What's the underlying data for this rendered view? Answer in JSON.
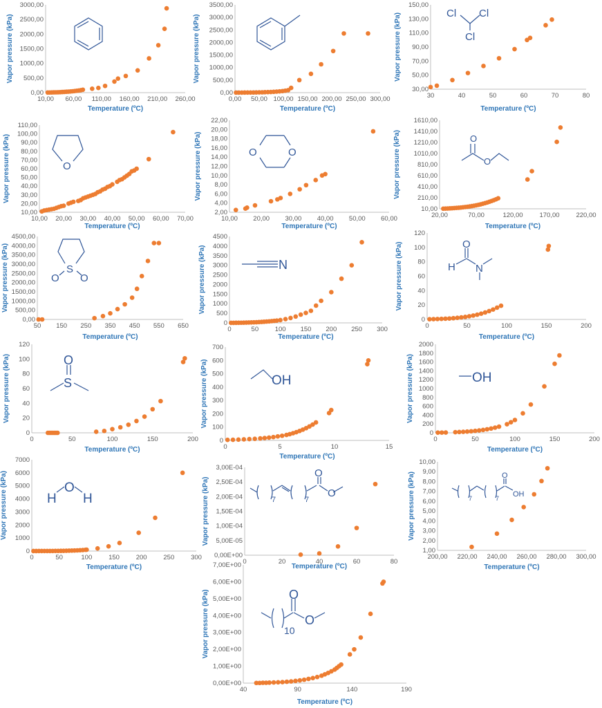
{
  "colors": {
    "point": "#ED7D31",
    "point_alt": "#5B9BD5",
    "label": "#2E75B6",
    "structure": "#2F5597"
  },
  "structures": {
    "c2": {
      "cl1": "Cl",
      "cl2": "Cl",
      "cl3": "Cl"
    },
    "c4": {
      "o1": "O",
      "o2": "O"
    },
    "c5": {
      "o": "O"
    },
    "c6": {
      "o1": "O",
      "o2": "O"
    },
    "c7": {
      "s": "S",
      "o1": "O",
      "o2": "O"
    },
    "c8": {
      "n": "N"
    },
    "c9": {
      "o": "O",
      "h": "H",
      "n": "N"
    },
    "c10": {
      "o": "O",
      "s": "S"
    },
    "c11": {
      "oh": "OH"
    },
    "c12": {
      "oh": "OH"
    },
    "c13": {
      "h1": "H",
      "o": "O",
      "h2": "H"
    },
    "c14": {
      "o1": "O",
      "o2": "O",
      "n1": "7",
      "n2": "7"
    },
    "c15": {
      "o": "O",
      "oh": "OH",
      "n1": "7",
      "n2": "7"
    },
    "c16": {
      "o1": "O",
      "o2": "O",
      "n": "10"
    }
  },
  "chart_data": [
    {
      "id": "c0",
      "type": "scatter",
      "title": "",
      "xlabel": "Temperature (ºC)",
      "ylabel": "Vapor pressure (kPa)",
      "xlim": [
        10,
        280
      ],
      "ylim": [
        0,
        3000
      ],
      "xticks": [
        "10,00",
        "60,00",
        "110,00",
        "160,00",
        "210,00",
        "260,00"
      ],
      "yticks": [
        "0,00",
        "500,00",
        "1000,00",
        "1500,00",
        "2000,00",
        "2500,00",
        "3000,00"
      ],
      "x": [
        14,
        18,
        22,
        26,
        30,
        34,
        38,
        42,
        46,
        50,
        54,
        58,
        62,
        66,
        70,
        74,
        78,
        82,
        100,
        112,
        125,
        143,
        150,
        165,
        188,
        210,
        228,
        240,
        244
      ],
      "y": [
        5,
        6,
        8,
        10,
        12,
        14,
        17,
        21,
        25,
        30,
        35,
        41,
        47,
        55,
        63,
        72,
        85,
        100,
        135,
        160,
        230,
        380,
        480,
        570,
        760,
        1170,
        1620,
        2180,
        2880
      ]
    },
    {
      "id": "c1",
      "type": "scatter",
      "title": "",
      "xlabel": "Temperature (ºC)",
      "ylabel": "Vapor pressure (kPa)",
      "xlim": [
        0,
        300
      ],
      "ylim": [
        0,
        3500
      ],
      "xticks": [
        "0,00",
        "50,00",
        "100,00",
        "150,00",
        "200,00",
        "250,00",
        "300,00"
      ],
      "yticks": [
        "0,00",
        "500,00",
        "1000,00",
        "1500,00",
        "2000,00",
        "2500,00",
        "3000,00",
        "3500,00"
      ],
      "x": [
        2,
        8,
        14,
        20,
        26,
        32,
        38,
        44,
        50,
        56,
        62,
        68,
        74,
        80,
        86,
        92,
        98,
        104,
        110,
        116,
        133,
        157,
        178,
        203,
        225,
        275
      ],
      "y": [
        2,
        2,
        3,
        4,
        5,
        6,
        7,
        9,
        11,
        14,
        18,
        22,
        27,
        33,
        41,
        50,
        62,
        78,
        100,
        190,
        500,
        750,
        1130,
        1660,
        2360,
        2360
      ],
      "x_blue": [
        5,
        20,
        40,
        60,
        80,
        100
      ],
      "y_blue": [
        2,
        4,
        7,
        14,
        30,
        65
      ]
    },
    {
      "id": "c2",
      "type": "scatter",
      "title": "",
      "xlabel": "Temperature (ºC)",
      "ylabel": "Vapor pressure (kPa)",
      "xlim": [
        30,
        80
      ],
      "ylim": [
        30,
        150
      ],
      "xticks": [
        "30",
        "40",
        "50",
        "60",
        "70",
        "80"
      ],
      "yticks": [
        "30,00",
        "50,00",
        "70,00",
        "90,00",
        "110,00",
        "130,00",
        "150,00"
      ],
      "x": [
        30,
        32,
        37,
        42,
        47,
        52,
        57,
        61,
        62,
        67,
        69
      ],
      "y": [
        33,
        35,
        43,
        53,
        63,
        74,
        87,
        100,
        103,
        121,
        129
      ]
    },
    {
      "id": "c3",
      "type": "scatter",
      "title": "",
      "xlabel": "Temperature (ºC)",
      "ylabel": "Vapor pressure (kPa)",
      "xlim": [
        10,
        70
      ],
      "ylim": [
        10,
        110
      ],
      "xticks": [
        "10,00",
        "20,00",
        "30,00",
        "40,00",
        "50,00",
        "60,00",
        "70,00"
      ],
      "yticks": [
        "10,00",
        "20,00",
        "30,00",
        "40,00",
        "50,00",
        "60,00",
        "70,00",
        "80,00",
        "90,00",
        "100,00",
        "110,00"
      ],
      "x": [
        11,
        12,
        13,
        14,
        15,
        16,
        17,
        18,
        19,
        20,
        22,
        23,
        24,
        26,
        27,
        28,
        29,
        30,
        31,
        32,
        33,
        34,
        35,
        36,
        37,
        38,
        39,
        40,
        42,
        43,
        44,
        45,
        46,
        47,
        48,
        49,
        50,
        55,
        65
      ],
      "y": [
        11,
        12,
        12.5,
        13,
        13.5,
        14,
        15,
        16,
        17,
        17.5,
        20,
        21,
        22,
        23,
        24,
        26,
        27,
        28,
        29,
        30,
        31,
        33,
        34,
        36,
        37,
        39,
        40,
        42,
        45,
        47,
        48,
        50,
        52,
        54,
        57,
        58,
        60,
        71,
        102
      ]
    },
    {
      "id": "c4",
      "type": "scatter",
      "title": "",
      "xlabel": "Temperature (ºC)",
      "ylabel": "Vapor pressure (kPa)",
      "xlim": [
        10,
        60
      ],
      "ylim": [
        2,
        22
      ],
      "xticks": [
        "10,00",
        "20,00",
        "30,00",
        "40,00",
        "50,00",
        "60,00"
      ],
      "yticks": [
        "2,00",
        "4,00",
        "6,00",
        "8,00",
        "10,00",
        "12,00",
        "14,00",
        "16,00",
        "18,00",
        "20,00",
        "22,00"
      ],
      "x": [
        12,
        15,
        15.5,
        18,
        23,
        25,
        26,
        29,
        32,
        34,
        37,
        39,
        40,
        55
      ],
      "y": [
        2.5,
        2.8,
        3,
        3.5,
        4.4,
        4.8,
        5.1,
        6,
        7,
        7.9,
        9,
        10,
        10.3,
        19.6
      ]
    },
    {
      "id": "c5",
      "type": "scatter",
      "title": "",
      "xlabel": "Temperature (ºC)",
      "ylabel": "Vapor pressure (kPa)",
      "xlim": [
        20,
        220
      ],
      "ylim": [
        10,
        1610
      ],
      "xticks": [
        "20,00",
        "70,00",
        "120,00",
        "170,00",
        "220,00"
      ],
      "yticks": [
        "10,00",
        "210,00",
        "410,00",
        "610,00",
        "810,00",
        "1010,00",
        "1210,00",
        "1410,00",
        "1610,00"
      ],
      "x": [
        25,
        28,
        31,
        34,
        37,
        40,
        43,
        46,
        49,
        52,
        55,
        58,
        61,
        64,
        67,
        70,
        73,
        76,
        79,
        82,
        85,
        88,
        91,
        94,
        97,
        100,
        140,
        146,
        180,
        185
      ],
      "y": [
        12,
        14,
        16,
        18,
        20,
        23,
        26,
        29,
        33,
        37,
        42,
        47,
        53,
        59,
        66,
        73,
        82,
        91,
        101,
        112,
        124,
        137,
        151,
        166,
        182,
        200,
        540,
        690,
        1220,
        1480
      ]
    },
    {
      "id": "c6",
      "type": "scatter",
      "title": "",
      "xlabel": "Temperature (ºC)",
      "ylabel": "Vapor pressure (kPa)",
      "xlim": [
        50,
        650
      ],
      "ylim": [
        0,
        4500
      ],
      "xticks": [
        "50",
        "150",
        "250",
        "350",
        "450",
        "550",
        "650"
      ],
      "yticks": [
        "0,00",
        "500,00",
        "1000,00",
        "1500,00",
        "2000,00",
        "2500,00",
        "3000,00",
        "3500,00",
        "4000,00",
        "4500,00"
      ],
      "x": [
        55,
        70,
        285,
        320,
        350,
        380,
        410,
        440,
        460,
        480,
        505,
        530,
        550
      ],
      "y": [
        0,
        0,
        70,
        180,
        330,
        560,
        820,
        1180,
        1660,
        2350,
        3170,
        4140,
        4140
      ]
    },
    {
      "id": "c7",
      "type": "scatter",
      "title": "",
      "xlabel": "Temperature (ºC)",
      "ylabel": "Vapor pressure (kPa)",
      "xlim": [
        0,
        300
      ],
      "ylim": [
        0,
        4500
      ],
      "xticks": [
        "0",
        "50",
        "100",
        "150",
        "200",
        "250",
        "300"
      ],
      "yticks": [
        "0",
        "500",
        "1000",
        "1500",
        "2000",
        "2500",
        "3000",
        "3500",
        "4000",
        "4500"
      ],
      "x": [
        3,
        8,
        13,
        18,
        23,
        28,
        33,
        38,
        43,
        48,
        53,
        58,
        63,
        68,
        73,
        78,
        83,
        88,
        93,
        100,
        110,
        120,
        130,
        140,
        150,
        160,
        170,
        180,
        200,
        220,
        240,
        260
      ],
      "y": [
        2,
        3,
        5,
        7,
        9,
        12,
        15,
        19,
        24,
        29,
        35,
        42,
        50,
        59,
        69,
        80,
        92,
        105,
        120,
        145,
        195,
        255,
        330,
        430,
        520,
        630,
        900,
        1150,
        1600,
        2300,
        3000,
        4200
      ]
    },
    {
      "id": "c8",
      "type": "scatter",
      "title": "",
      "xlabel": "Temperature (ºC)",
      "ylabel": "Vapor pressure (kPa)",
      "xlim": [
        0,
        200
      ],
      "ylim": [
        0,
        120
      ],
      "xticks": [
        "0",
        "50",
        "100",
        "150",
        "200"
      ],
      "yticks": [
        "0",
        "20",
        "40",
        "60",
        "80",
        "100",
        "120"
      ],
      "x": [
        3,
        8,
        13,
        18,
        23,
        28,
        33,
        38,
        43,
        48,
        53,
        58,
        63,
        68,
        73,
        78,
        83,
        88,
        93,
        152,
        153
      ],
      "y": [
        0.3,
        0.4,
        0.6,
        0.8,
        1,
        1.3,
        1.7,
        2.2,
        2.8,
        3.5,
        4.4,
        5.4,
        6.6,
        8,
        9.7,
        11.6,
        13.8,
        16.4,
        19,
        97,
        102
      ]
    },
    {
      "id": "c9",
      "type": "scatter",
      "title": "",
      "xlabel": "Temperature (ºC)",
      "ylabel": "Vapor pressure (kPa)",
      "xlim": [
        0,
        200
      ],
      "ylim": [
        0,
        120
      ],
      "xticks": [
        "0",
        "50",
        "100",
        "150",
        "200"
      ],
      "yticks": [
        "0",
        "20",
        "40",
        "60",
        "80",
        "100",
        "120"
      ],
      "x": [
        20,
        22,
        24,
        26,
        28,
        30,
        32,
        80,
        90,
        100,
        110,
        120,
        130,
        140,
        150,
        160,
        188,
        190
      ],
      "y": [
        0,
        0,
        0,
        0,
        0,
        0,
        0,
        1.5,
        2.5,
        5,
        7.5,
        11,
        16,
        22,
        32,
        43,
        96,
        101
      ]
    },
    {
      "id": "c10",
      "type": "scatter",
      "title": "",
      "xlabel": "Temperature (ºC)",
      "ylabel": "Vapor pressure (kPa)",
      "xlim": [
        0,
        15
      ],
      "ylim": [
        0,
        700
      ],
      "xticks": [
        "0",
        "5",
        "10",
        "15"
      ],
      "yticks": [
        "0",
        "100",
        "200",
        "300",
        "400",
        "500",
        "600",
        "700"
      ],
      "x": [
        0.2,
        0.7,
        1.2,
        1.7,
        2.2,
        2.7,
        3.2,
        3.6,
        4,
        4.4,
        4.8,
        5.2,
        5.6,
        5.9,
        6.2,
        6.5,
        6.8,
        7.1,
        7.4,
        7.7,
        8,
        8.3,
        9.5,
        9.7,
        13,
        13.1
      ],
      "y": [
        4,
        5,
        6,
        8,
        10,
        12,
        15,
        18,
        21,
        25,
        30,
        35,
        41,
        47,
        54,
        62,
        71,
        81,
        92,
        105,
        119,
        135,
        205,
        228,
        572,
        600
      ]
    },
    {
      "id": "c11",
      "type": "scatter",
      "title": "",
      "xlabel": "Temperature (ºC)",
      "ylabel": "Vapor pressure (kPa)",
      "xlim": [
        0,
        200
      ],
      "ylim": [
        0,
        2000
      ],
      "xticks": [
        "0",
        "50",
        "100",
        "150",
        "200"
      ],
      "yticks": [
        "0",
        "200",
        "400",
        "600",
        "800",
        "1000",
        "1200",
        "1400",
        "1600",
        "1800",
        "2000"
      ],
      "x": [
        3,
        8,
        13,
        25,
        30,
        35,
        40,
        45,
        50,
        55,
        60,
        65,
        70,
        75,
        80,
        90,
        95,
        100,
        110,
        120,
        137,
        150,
        156
      ],
      "y": [
        5,
        6,
        7,
        14,
        18,
        22,
        28,
        35,
        44,
        54,
        66,
        80,
        97,
        117,
        140,
        195,
        240,
        290,
        440,
        640,
        1050,
        1560,
        1750
      ]
    },
    {
      "id": "c12",
      "type": "scatter",
      "title": "",
      "xlabel": "Temperature (ºC)",
      "ylabel": "Vapor pressure (kPa)",
      "xlim": [
        0,
        300
      ],
      "ylim": [
        0,
        7000
      ],
      "xticks": [
        "0",
        "50",
        "100",
        "150",
        "200",
        "250",
        "300"
      ],
      "yticks": [
        "0",
        "1000",
        "2000",
        "3000",
        "4000",
        "5000",
        "6000",
        "7000"
      ],
      "x": [
        3,
        8,
        13,
        18,
        23,
        28,
        33,
        38,
        43,
        48,
        53,
        58,
        63,
        68,
        73,
        78,
        83,
        88,
        93,
        98,
        100,
        120,
        140,
        160,
        195,
        225,
        275
      ],
      "y": [
        1,
        1,
        2,
        2,
        3,
        4,
        5,
        7,
        9,
        11,
        14,
        18,
        23,
        29,
        35,
        44,
        53,
        65,
        78,
        94,
        101,
        200,
        360,
        620,
        1400,
        2550,
        6000
      ]
    },
    {
      "id": "c13",
      "type": "scatter",
      "title": "",
      "xlabel": "Temperature (ºC)",
      "ylabel": "Vapor pressure (kPa)",
      "xlim": [
        0,
        80
      ],
      "ylim": [
        0,
        0.0003
      ],
      "xticks": [
        "0",
        "20",
        "40",
        "60",
        "80"
      ],
      "yticks": [
        "0,00E+00",
        "5,00E-05",
        "1,00E-04",
        "1,50E-04",
        "2,00E-04",
        "2,50E-04",
        "3,00E-04"
      ],
      "x": [
        30,
        40,
        50,
        60,
        70
      ],
      "y": [
        2e-06,
        6e-06,
        3e-05,
        9.3e-05,
        0.000243
      ]
    },
    {
      "id": "c14",
      "type": "scatter",
      "title": "",
      "xlabel": "Temperature (ºC)",
      "ylabel": "Vapor pressure (kPa)",
      "xlim": [
        200,
        300
      ],
      "ylim": [
        1,
        10
      ],
      "xticks": [
        "200,00",
        "220,00",
        "240,00",
        "260,00",
        "280,00",
        "300,00"
      ],
      "yticks": [
        "1,00",
        "2,00",
        "3,00",
        "4,00",
        "5,00",
        "6,00",
        "7,00",
        "8,00",
        "9,00",
        "10,00"
      ],
      "x": [
        223,
        240,
        250,
        258,
        265,
        270,
        274
      ],
      "y": [
        1.35,
        2.7,
        4.1,
        5.4,
        6.7,
        8.05,
        9.35
      ]
    },
    {
      "id": "c15",
      "type": "scatter",
      "title": "",
      "xlabel": "Temperature  (ºC)",
      "ylabel": "Vapor pressure (kPa)",
      "xlim": [
        40,
        190
      ],
      "ylim": [
        0,
        7
      ],
      "xticks": [
        "40",
        "90",
        "140",
        "190"
      ],
      "yticks": [
        "0,00E+00",
        "1,00E+00",
        "2,00E+00",
        "3,00E+00",
        "4,00E+00",
        "5,00E+00",
        "6,00E+00",
        "7,00E+00"
      ],
      "x": [
        52,
        55,
        58,
        61,
        64,
        68,
        72,
        76,
        80,
        84,
        88,
        92,
        96,
        100,
        104,
        108,
        112,
        115,
        118,
        121,
        124,
        126,
        128,
        130,
        138,
        142,
        148,
        157,
        168,
        169
      ],
      "y": [
        0.01,
        0.01,
        0.02,
        0.02,
        0.03,
        0.04,
        0.05,
        0.06,
        0.08,
        0.1,
        0.13,
        0.16,
        0.2,
        0.25,
        0.3,
        0.36,
        0.44,
        0.52,
        0.6,
        0.7,
        0.8,
        0.9,
        1,
        1.1,
        1.7,
        2,
        2.7,
        4.1,
        5.9,
        6
      ]
    }
  ]
}
